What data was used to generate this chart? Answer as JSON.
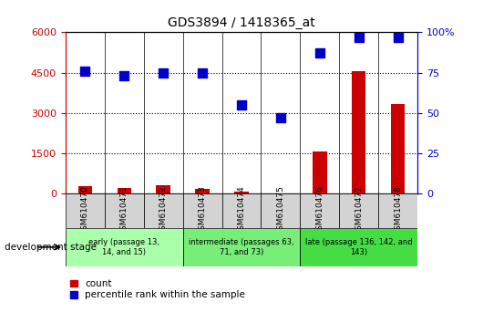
{
  "title": "GDS3894 / 1418365_at",
  "samples": [
    "GSM610470",
    "GSM610471",
    "GSM610472",
    "GSM610473",
    "GSM610474",
    "GSM610475",
    "GSM610476",
    "GSM610477",
    "GSM610478"
  ],
  "counts": [
    300,
    230,
    310,
    175,
    80,
    10,
    1560,
    4560,
    3350
  ],
  "percentiles": [
    76,
    73,
    75,
    75,
    55,
    47,
    87,
    97,
    97
  ],
  "groups": [
    {
      "label": "early (passage 13,\n14, and 15)",
      "start": 0,
      "end": 3,
      "color": "#aaffaa"
    },
    {
      "label": "intermediate (passages 63,\n71, and 73)",
      "start": 3,
      "end": 6,
      "color": "#77ee77"
    },
    {
      "label": "late (passage 136, 142, and\n143)",
      "start": 6,
      "end": 9,
      "color": "#44dd44"
    }
  ],
  "ylim_left": [
    0,
    6000
  ],
  "ylim_right": [
    0,
    100
  ],
  "yticks_left": [
    0,
    1500,
    3000,
    4500,
    6000
  ],
  "yticks_right": [
    0,
    25,
    50,
    75,
    100
  ],
  "bar_color": "#cc0000",
  "dot_color": "#0000cc",
  "bar_width": 0.35,
  "dot_size": 55,
  "background_color": "#ffffff",
  "plot_bg_color": "#ffffff",
  "sample_bg_color": "#d3d3d3",
  "grid_color": "black",
  "left_axis_color": "#cc0000",
  "right_axis_color": "#0000cc"
}
